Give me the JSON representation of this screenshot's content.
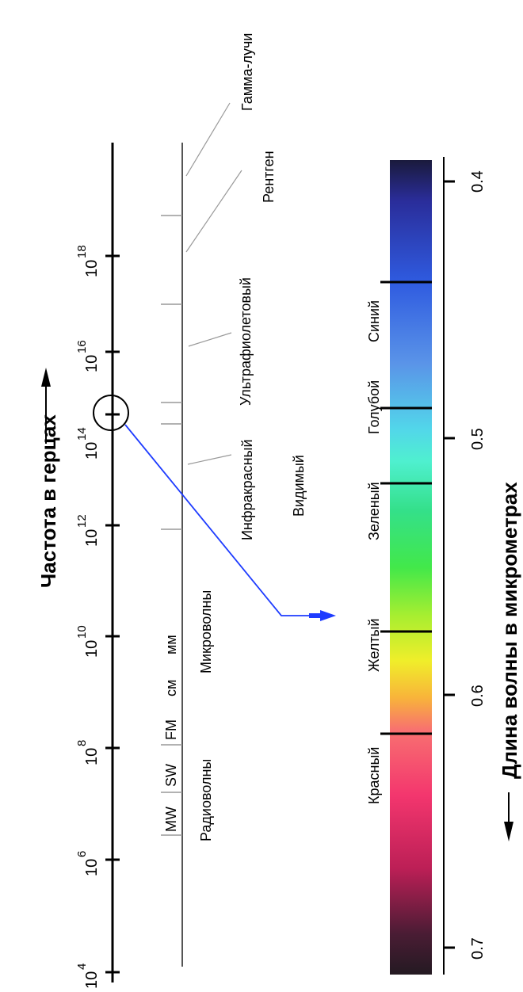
{
  "frequency_axis": {
    "title": "Частота в герцах",
    "ticks": [
      {
        "base": "10",
        "exp": "4"
      },
      {
        "base": "10",
        "exp": "6"
      },
      {
        "base": "10",
        "exp": "8"
      },
      {
        "base": "10",
        "exp": "10"
      },
      {
        "base": "10",
        "exp": "12"
      },
      {
        "base": "10",
        "exp": "14"
      },
      {
        "base": "10",
        "exp": "16"
      },
      {
        "base": "10",
        "exp": "18"
      }
    ]
  },
  "bands": {
    "mw": "MW",
    "sw": "SW",
    "fm": "FM",
    "cm": "см",
    "mm": "мм"
  },
  "regions": {
    "radio": "Радиоволны",
    "micro": "Микроволны",
    "infrared": "Инфракрасный",
    "visible": "Видимый",
    "ultraviolet": "Ультрафиолетовый",
    "xray": "Рентген",
    "gamma": "Гамма-лучи"
  },
  "wavelength_axis": {
    "title": "Длина волны в микрометрах",
    "ticks": [
      "0.4",
      "0.5",
      "0.6",
      "0.7"
    ]
  },
  "colors": {
    "red": "Красный",
    "yellow": "Желтый",
    "green": "Зеленый",
    "cyan": "Голубой",
    "blue": "Синий"
  }
}
